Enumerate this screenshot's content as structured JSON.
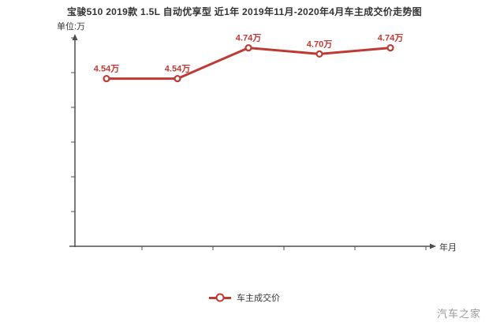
{
  "title": "宝骏510 2019款 1.5L 自动优享型 近1年 2019年11月-2020年4月车主成交价走势图",
  "axes": {
    "y_unit_label": "单位:万",
    "x_axis_label": "年月"
  },
  "legend": {
    "label": "车主成交价"
  },
  "watermark": "汽车之家",
  "colors": {
    "series": "#c03a34",
    "axis": "#4d4d4d",
    "title_text": "#333333",
    "watermark_text": "#999999"
  },
  "chart_data": {
    "type": "line",
    "title": "宝骏510 2019款 1.5L 自动优享型 近1年 2019年11月-2020年4月车主成交价走势图",
    "xlabel": "年月",
    "ylabel": "单位:万",
    "categories": [
      "1",
      "2",
      "3",
      "4",
      "5"
    ],
    "x_tick_labels_shown": false,
    "series": [
      {
        "name": "车主成交价",
        "values": [
          4.54,
          4.54,
          4.74,
          4.7,
          4.74
        ],
        "point_labels": [
          "4.54万",
          "4.54万",
          "4.74万",
          "4.70万",
          "4.74万"
        ],
        "color": "#c03a34"
      }
    ],
    "ylim": [
      3.45,
      4.82
    ],
    "grid": false,
    "legend_position": "bottom"
  }
}
